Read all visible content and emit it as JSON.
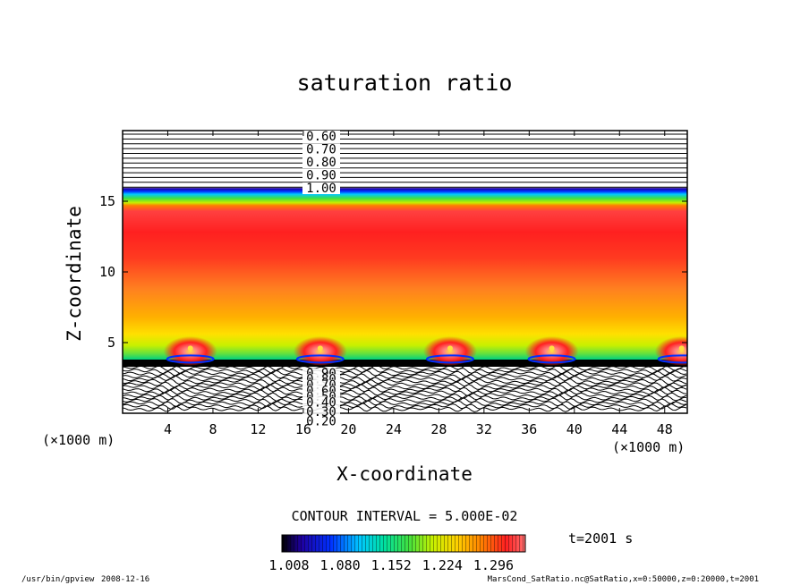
{
  "chart_data": {
    "type": "heatmap",
    "title": "saturation ratio",
    "xlabel": "X-coordinate",
    "ylabel": "Z-coordinate",
    "x_unit": "(×1000 m)",
    "y_unit": "(×1000 m)",
    "xlim": [
      0,
      50
    ],
    "ylim": [
      0,
      20
    ],
    "x_ticks": [
      4,
      8,
      12,
      16,
      20,
      24,
      28,
      32,
      36,
      40,
      44,
      48
    ],
    "y_ticks": [
      5,
      10,
      15
    ],
    "contour_interval": "CONTOUR INTERVAL = 5.000E-02",
    "time_label": "t=2001 s",
    "colorbar_ticks": [
      "1.008",
      "1.080",
      "1.152",
      "1.224",
      "1.296"
    ],
    "colorbar_range": [
      1.008,
      1.296
    ],
    "colormap": [
      "#000000",
      "#1e00a0",
      "#0030ff",
      "#00c8ff",
      "#00e0a0",
      "#40e040",
      "#c8f000",
      "#ffd000",
      "#ff8000",
      "#ff2020",
      "#ff7070"
    ],
    "upper_contour_labels": [
      "0.60",
      "0.70",
      "0.80",
      "0.90",
      "1.00"
    ],
    "lower_contour_labels": [
      "0.90",
      "0.80",
      "0.70",
      "0.60",
      "0.50",
      "0.40",
      "0.30",
      "0.20"
    ],
    "cloud_centers_x": [
      6,
      17.5,
      29,
      38,
      49.5
    ],
    "cloud_center_z": 4.6
  },
  "footer": {
    "program": "/usr/bin/gpview",
    "date": "2008-12-16",
    "source": "MarsCond_SatRatio.nc@SatRatio,x=0:50000,z=0:20000,t=2001"
  }
}
